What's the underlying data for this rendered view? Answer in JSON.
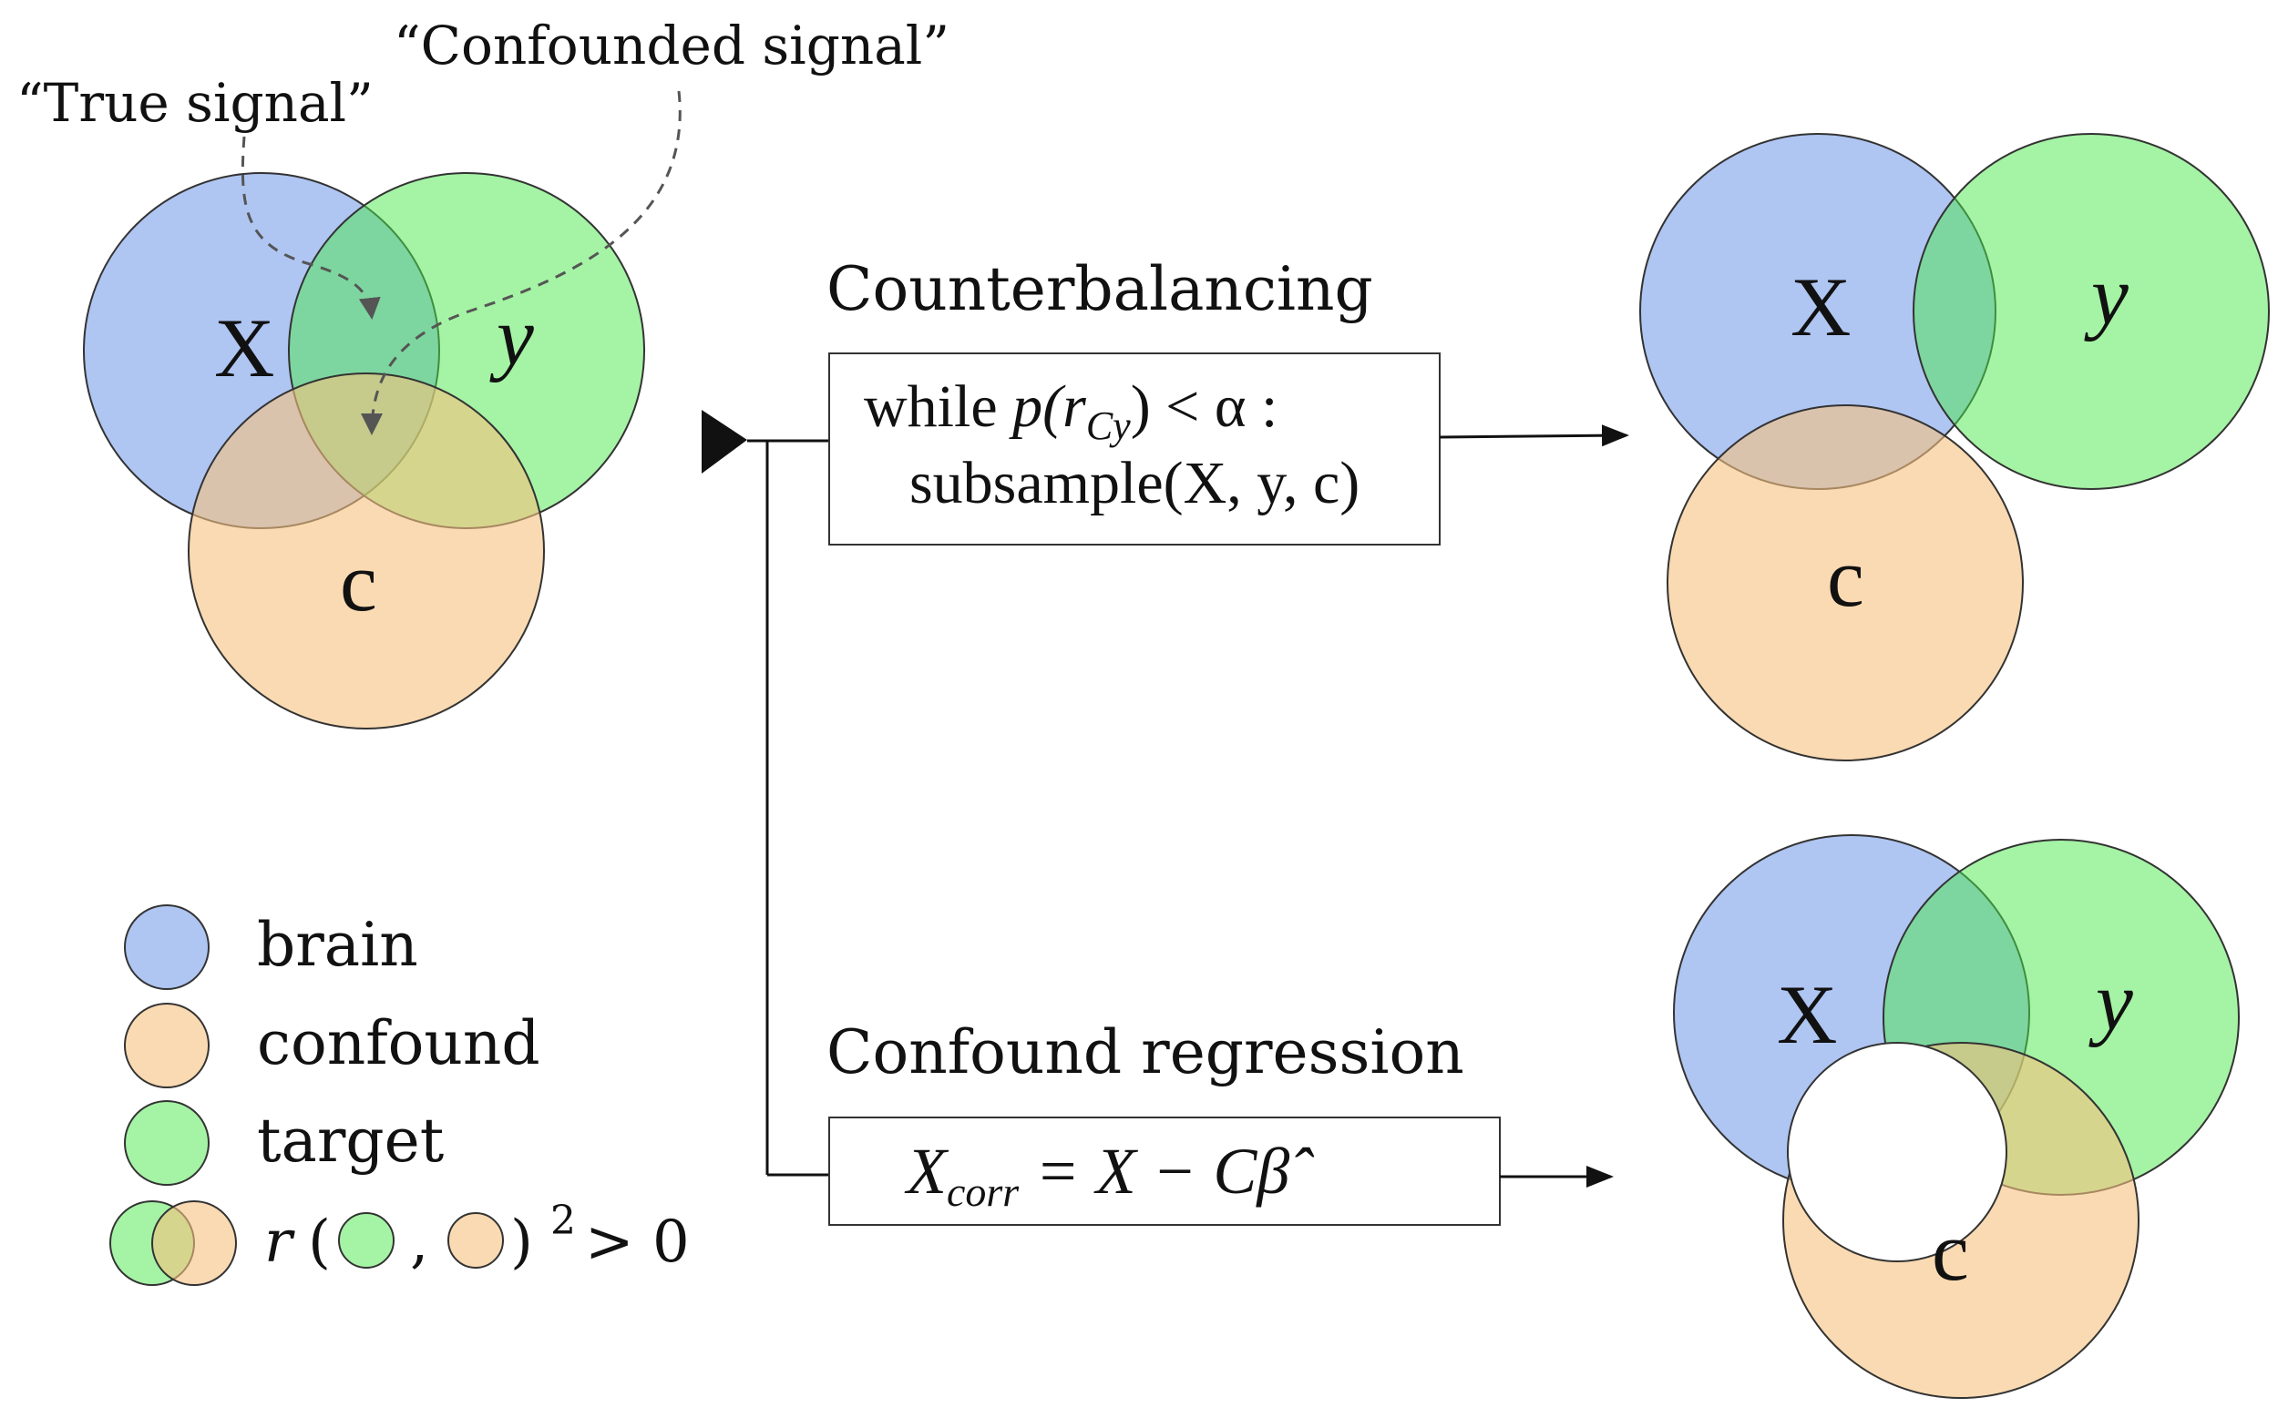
{
  "colors": {
    "brain": "#6d95e8",
    "confound": "#f7c27e",
    "target": "#4be84b",
    "outline": "#333333",
    "arrow": "#111111",
    "annotation_dash": "#555555"
  },
  "annotations": {
    "true_signal": "“True signal”",
    "confounded_signal": "“Confounded signal”"
  },
  "venn_labels": {
    "brain": "X",
    "target": "y",
    "confound": "c"
  },
  "methods": {
    "counterbalancing": {
      "title": "Counterbalancing",
      "line1_prefix": "while ",
      "line1_formula": "p(r",
      "line1_sub": "Cy",
      "line1_suffix": ") < α :",
      "line2": "subsample(X, y, c)"
    },
    "confound_regression": {
      "title": "Confound regression",
      "formula_lhs": "X",
      "formula_sub": "corr",
      "formula_rhs": " = X − C",
      "beta_hat": "β̂"
    }
  },
  "legend": {
    "items": [
      {
        "label": "brain",
        "icon": "brain-circle-icon"
      },
      {
        "label": "confound",
        "icon": "confound-circle-icon"
      },
      {
        "label": "target",
        "icon": "target-circle-icon"
      }
    ],
    "correlation": {
      "prefix": "r",
      "open_paren": "(",
      "comma": ",",
      "close_paren": ")",
      "exponent": "2",
      "inequality": "> 0"
    }
  }
}
